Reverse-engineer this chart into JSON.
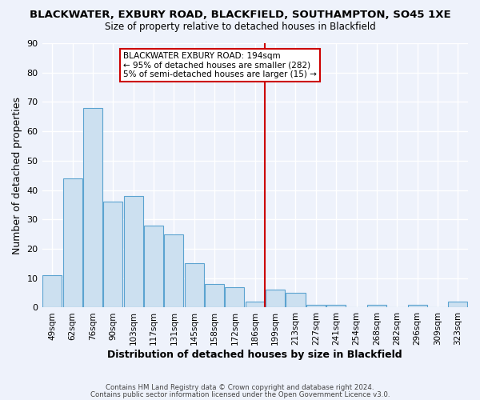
{
  "title": "BLACKWATER, EXBURY ROAD, BLACKFIELD, SOUTHAMPTON, SO45 1XE",
  "subtitle": "Size of property relative to detached houses in Blackfield",
  "xlabel": "Distribution of detached houses by size in Blackfield",
  "ylabel": "Number of detached properties",
  "bar_color": "#cce0f0",
  "bar_edge_color": "#5ba3d0",
  "categories": [
    "49sqm",
    "62sqm",
    "76sqm",
    "90sqm",
    "103sqm",
    "117sqm",
    "131sqm",
    "145sqm",
    "158sqm",
    "172sqm",
    "186sqm",
    "199sqm",
    "213sqm",
    "227sqm",
    "241sqm",
    "254sqm",
    "268sqm",
    "282sqm",
    "296sqm",
    "309sqm",
    "323sqm"
  ],
  "values": [
    11,
    44,
    68,
    36,
    38,
    28,
    25,
    15,
    8,
    7,
    2,
    6,
    5,
    1,
    1,
    0,
    1,
    0,
    1,
    0,
    2
  ],
  "ylim": [
    0,
    90
  ],
  "yticks": [
    0,
    10,
    20,
    30,
    40,
    50,
    60,
    70,
    80,
    90
  ],
  "vline_index": 11,
  "vline_color": "#cc0000",
  "annotation_title": "BLACKWATER EXBURY ROAD: 194sqm",
  "annotation_line1": "← 95% of detached houses are smaller (282)",
  "annotation_line2": "5% of semi-detached houses are larger (15) →",
  "annotation_box_color": "#ffffff",
  "annotation_box_edge": "#cc0000",
  "footer1": "Contains HM Land Registry data © Crown copyright and database right 2024.",
  "footer2": "Contains public sector information licensed under the Open Government Licence v3.0.",
  "background_color": "#eef2fb",
  "grid_color": "#ffffff"
}
